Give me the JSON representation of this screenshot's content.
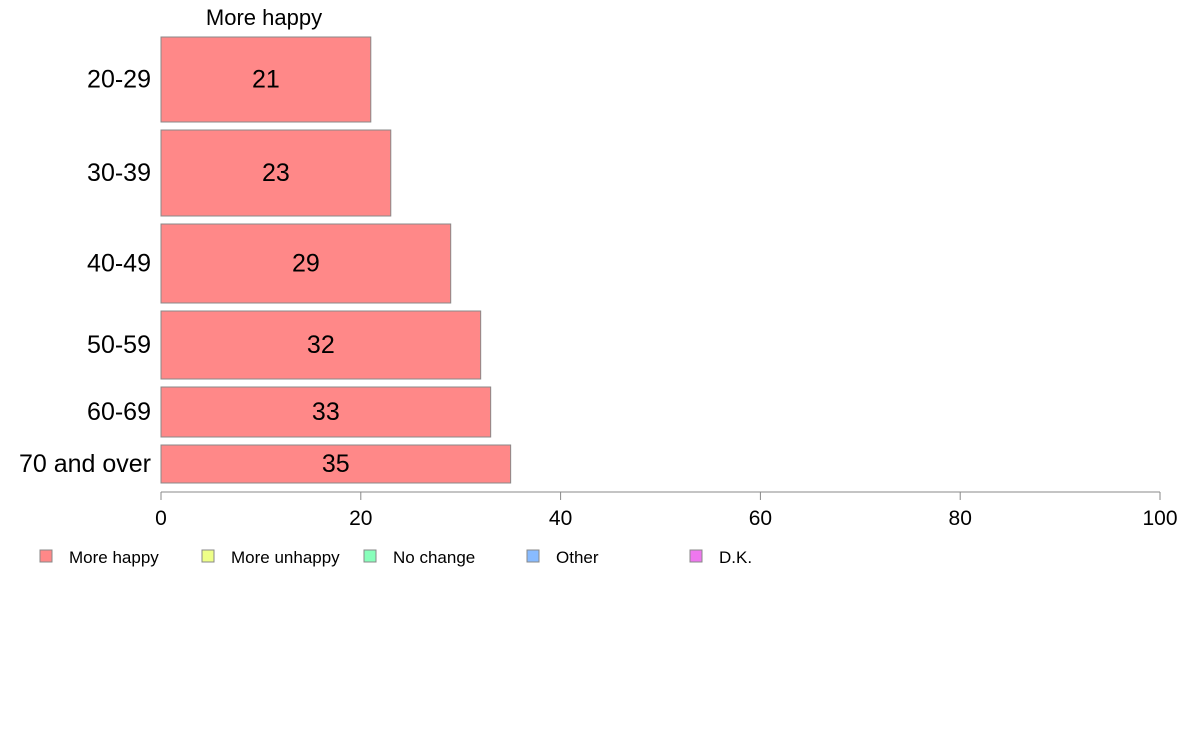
{
  "chart_data": {
    "type": "bar",
    "orientation": "horizontal",
    "header": "More happy",
    "categories": [
      "20-29",
      "30-39",
      "40-49",
      "50-59",
      "60-69",
      "70 and over"
    ],
    "series": [
      {
        "name": "More happy",
        "color": "#ff8888",
        "values": [
          21,
          23,
          29,
          32,
          33,
          35
        ]
      }
    ],
    "xlim": [
      0,
      100
    ],
    "xticks": [
      0,
      20,
      40,
      60,
      80,
      100
    ],
    "grid": false,
    "legend": {
      "placement": "bottom",
      "items": [
        {
          "label": "More happy",
          "color": "#ff8888"
        },
        {
          "label": "More unhappy",
          "color": "#eeff88"
        },
        {
          "label": "No change",
          "color": "#88ffbb"
        },
        {
          "label": "Other",
          "color": "#88bbff"
        },
        {
          "label": "D.K.",
          "color": "#ee77ee"
        }
      ]
    }
  }
}
